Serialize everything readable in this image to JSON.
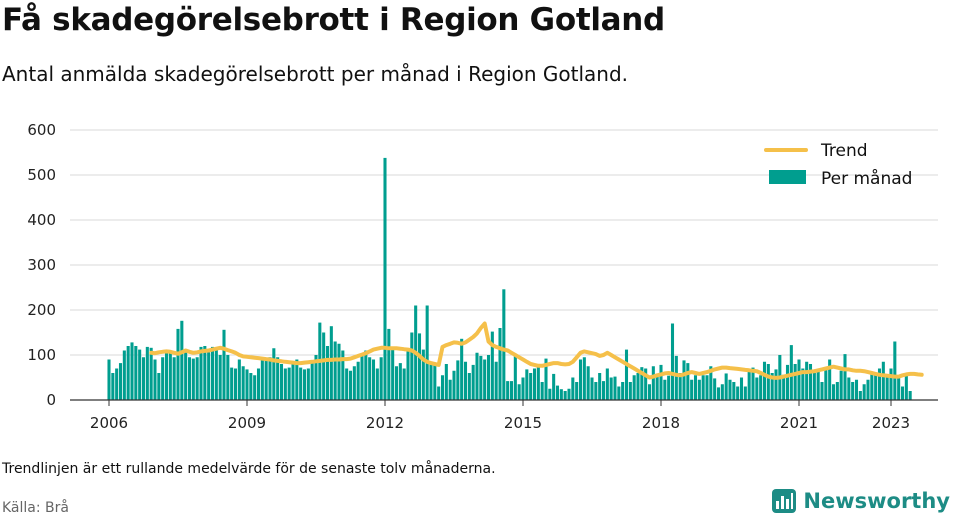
{
  "title": "Få skadegörelsebrott i Region Gotland",
  "subtitle": "Antal anmälda skadegörelsebrott per månad i Region Gotland.",
  "note": "Trendlinjen är ett rullande medelvärde för de senaste tolv månaderna.",
  "source": "Källa: Brå",
  "brand": "Newsworthy",
  "colors": {
    "bars": "#009e8f",
    "trend": "#f5c04a",
    "grid": "#d9d9d9",
    "brand": "#1d8c85"
  },
  "chart_data": {
    "type": "bar",
    "title": "",
    "xlabel": "",
    "ylabel": "",
    "ylim": [
      0,
      600
    ],
    "yticks": [
      0,
      100,
      200,
      300,
      400,
      500,
      600
    ],
    "xticks": [
      "2006",
      "2009",
      "2012",
      "2015",
      "2018",
      "2021",
      "2023"
    ],
    "grid": true,
    "legend_position": "top-right",
    "start": "2006-01",
    "series": [
      {
        "name": "Per månad",
        "type": "bar",
        "values": [
          90,
          60,
          70,
          82,
          110,
          120,
          128,
          120,
          112,
          95,
          118,
          116,
          90,
          60,
          95,
          110,
          108,
          95,
          158,
          176,
          108,
          95,
          92,
          95,
          118,
          120,
          106,
          118,
          112,
          100,
          156,
          100,
          72,
          70,
          90,
          75,
          68,
          60,
          55,
          70,
          88,
          90,
          95,
          115,
          95,
          80,
          70,
          72,
          86,
          90,
          72,
          68,
          70,
          82,
          100,
          172,
          150,
          120,
          164,
          130,
          125,
          110,
          70,
          65,
          75,
          85,
          100,
          110,
          95,
          90,
          70,
          95,
          538,
          158,
          112,
          75,
          82,
          70,
          115,
          150,
          210,
          148,
          112,
          210,
          85,
          80,
          30,
          55,
          80,
          45,
          65,
          88,
          136,
          85,
          60,
          78,
          105,
          98,
          90,
          100,
          152,
          85,
          160,
          246,
          42,
          42,
          100,
          35,
          50,
          68,
          60,
          70,
          80,
          40,
          92,
          25,
          58,
          32,
          24,
          20,
          25,
          50,
          40,
          90,
          95,
          75,
          50,
          40,
          60,
          42,
          70,
          50,
          52,
          30,
          40,
          112,
          40,
          55,
          60,
          73,
          70,
          35,
          75,
          55,
          78,
          45,
          54,
          170,
          98,
          60,
          88,
          82,
          45,
          55,
          45,
          55,
          55,
          75,
          48,
          28,
          35,
          59,
          45,
          40,
          30,
          50,
          30,
          70,
          72,
          50,
          55,
          85,
          80,
          60,
          68,
          100,
          56,
          78,
          122,
          80,
          90,
          70,
          85,
          80,
          60,
          65,
          40,
          70,
          90,
          35,
          40,
          65,
          102,
          50,
          40,
          45,
          20,
          35,
          45,
          60,
          55,
          70,
          85,
          50,
          70,
          130,
          55,
          30,
          60,
          20
        ]
      },
      {
        "name": "Trend",
        "type": "line",
        "start": "2006-12",
        "values": [
          105,
          104,
          106,
          107,
          108,
          107,
          105,
          103,
          106,
          110,
          107,
          105,
          106,
          108,
          109,
          110,
          112,
          114,
          116,
          114,
          111,
          108,
          105,
          100,
          97,
          96,
          95,
          94,
          93,
          92,
          91,
          90,
          88,
          87,
          86,
          85,
          84,
          83,
          82,
          82,
          83,
          84,
          85,
          86,
          87,
          88,
          89,
          89,
          90,
          90,
          91,
          91,
          92,
          95,
          98,
          101,
          104,
          108,
          112,
          114,
          116,
          116,
          115,
          115,
          115,
          114,
          113,
          112,
          110,
          105,
          98,
          90,
          85,
          82,
          80,
          78,
          118,
          122,
          125,
          128,
          127,
          125,
          128,
          134,
          140,
          148,
          160,
          170,
          130,
          122,
          118,
          115,
          112,
          110,
          105,
          100,
          95,
          90,
          85,
          80,
          78,
          76,
          76,
          78,
          80,
          82,
          82,
          80,
          79,
          80,
          85,
          95,
          105,
          108,
          106,
          104,
          102,
          98,
          100,
          105,
          100,
          95,
          90,
          85,
          80,
          75,
          70,
          65,
          60,
          55,
          50,
          52,
          55,
          57,
          59,
          60,
          58,
          56,
          55,
          57,
          60,
          62,
          60,
          58,
          60,
          62,
          65,
          68,
          70,
          72,
          72,
          71,
          70,
          69,
          68,
          67,
          66,
          65,
          64,
          60,
          56,
          52,
          50,
          49,
          50,
          52,
          54,
          56,
          58,
          60,
          62,
          62,
          63,
          64,
          66,
          68,
          70,
          72,
          74,
          72,
          70,
          68,
          68,
          66,
          65,
          65,
          64,
          62,
          60,
          58,
          56,
          55,
          54,
          53,
          52,
          52,
          55,
          57,
          58,
          58,
          57,
          56
        ]
      }
    ]
  }
}
